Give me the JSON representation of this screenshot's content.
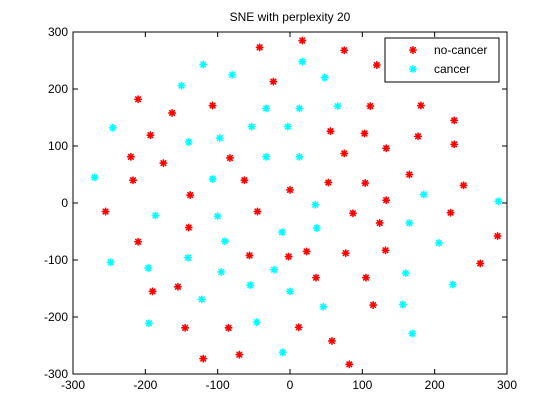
{
  "chart_data": {
    "type": "scatter",
    "title": "SNE with perplexity 20",
    "xlabel": "",
    "ylabel": "",
    "xlim": [
      -300,
      300
    ],
    "ylim": [
      -300,
      300
    ],
    "xticks": [
      -300,
      -200,
      -100,
      0,
      100,
      200,
      300
    ],
    "yticks": [
      -300,
      -200,
      -100,
      0,
      100,
      200,
      300
    ],
    "grid": false,
    "legend_position": "top-right",
    "series": [
      {
        "name": "no-cancer",
        "color": "#ff0000",
        "marker": "asterisk",
        "points": [
          [
            -42,
            273
          ],
          [
            17,
            285
          ],
          [
            75,
            268
          ],
          [
            -23,
            213
          ],
          [
            120,
            242
          ],
          [
            -210,
            182
          ],
          [
            -107,
            171
          ],
          [
            -163,
            158
          ],
          [
            -193,
            119
          ],
          [
            56,
            126
          ],
          [
            111,
            170
          ],
          [
            181,
            171
          ],
          [
            227,
            145
          ],
          [
            103,
            122
          ],
          [
            177,
            117
          ],
          [
            227,
            103
          ],
          [
            75,
            87
          ],
          [
            133,
            96
          ],
          [
            -220,
            81
          ],
          [
            -175,
            70
          ],
          [
            -83,
            79
          ],
          [
            -217,
            40
          ],
          [
            -63,
            40
          ],
          [
            0,
            23
          ],
          [
            53,
            36
          ],
          [
            104,
            35
          ],
          [
            165,
            50
          ],
          [
            240,
            31
          ],
          [
            -138,
            14
          ],
          [
            133,
            5
          ],
          [
            -255,
            -15
          ],
          [
            -45,
            -15
          ],
          [
            87,
            -18
          ],
          [
            222,
            -17
          ],
          [
            124,
            -35
          ],
          [
            -140,
            -43
          ],
          [
            -210,
            -68
          ],
          [
            23,
            -85
          ],
          [
            77,
            -88
          ],
          [
            132,
            -83
          ],
          [
            287,
            -58
          ],
          [
            -56,
            -92
          ],
          [
            -2,
            -94
          ],
          [
            263,
            -106
          ],
          [
            36,
            -131
          ],
          [
            105,
            -131
          ],
          [
            -155,
            -147
          ],
          [
            -190,
            -155
          ],
          [
            115,
            -179
          ],
          [
            -145,
            -219
          ],
          [
            -85,
            -219
          ],
          [
            12,
            -218
          ],
          [
            58,
            -242
          ],
          [
            -70,
            -266
          ],
          [
            -120,
            -273
          ],
          [
            82,
            -283
          ]
        ]
      },
      {
        "name": "cancer",
        "color": "#00ffff",
        "marker": "asterisk",
        "points": [
          [
            17,
            248
          ],
          [
            -120,
            243
          ],
          [
            -80,
            225
          ],
          [
            -150,
            206
          ],
          [
            48,
            220
          ],
          [
            -33,
            166
          ],
          [
            13,
            166
          ],
          [
            66,
            170
          ],
          [
            -245,
            132
          ],
          [
            -53,
            134
          ],
          [
            -3,
            134
          ],
          [
            -140,
            107
          ],
          [
            -97,
            114
          ],
          [
            -33,
            81
          ],
          [
            13,
            81
          ],
          [
            -270,
            45
          ],
          [
            -107,
            42
          ],
          [
            185,
            15
          ],
          [
            288,
            3
          ],
          [
            35,
            -3
          ],
          [
            -186,
            -22
          ],
          [
            -100,
            -23
          ],
          [
            165,
            -35
          ],
          [
            -11,
            -51
          ],
          [
            37,
            -44
          ],
          [
            -90,
            -67
          ],
          [
            206,
            -70
          ],
          [
            -248,
            -104
          ],
          [
            -141,
            -96
          ],
          [
            -196,
            -114
          ],
          [
            -95,
            -121
          ],
          [
            -22,
            -117
          ],
          [
            160,
            -123
          ],
          [
            -55,
            -144
          ],
          [
            0,
            -155
          ],
          [
            225,
            -143
          ],
          [
            -122,
            -169
          ],
          [
            46,
            -182
          ],
          [
            156,
            -178
          ],
          [
            -46,
            -209
          ],
          [
            -195,
            -211
          ],
          [
            169,
            -229
          ],
          [
            -10,
            -262
          ]
        ]
      }
    ]
  }
}
